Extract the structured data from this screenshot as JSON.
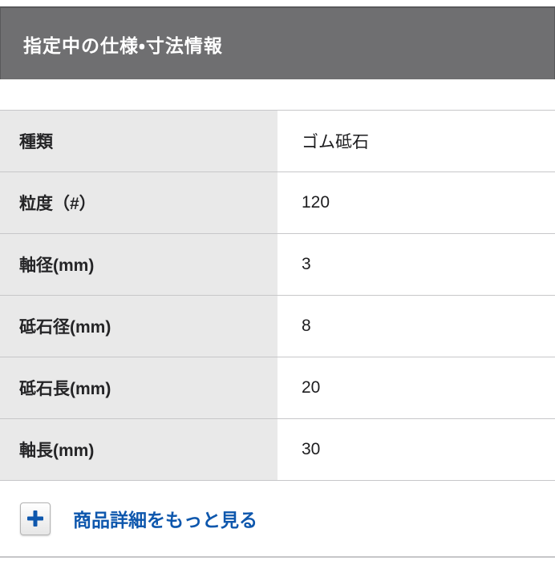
{
  "header": {
    "title": "指定中の仕様・寸法情報"
  },
  "spec_table": {
    "rows": [
      {
        "label": "種類",
        "value": "ゴム砥石"
      },
      {
        "label": "粒度（#）",
        "value": "120"
      },
      {
        "label": "軸径(mm)",
        "value": "3"
      },
      {
        "label": "砥石径(mm)",
        "value": "8"
      },
      {
        "label": "砥石長(mm)",
        "value": "20"
      },
      {
        "label": "軸長(mm)",
        "value": "30"
      }
    ]
  },
  "more_link": {
    "icon": "plus",
    "label": "商品詳細をもっと見る"
  },
  "colors": {
    "header_bg": "#6f6f71",
    "header_border": "#59595b",
    "label_cell_bg": "#e9e9e9",
    "row_border": "#c7c7c9",
    "link_blue": "#0e57ad",
    "text": "#1d1d1f"
  }
}
